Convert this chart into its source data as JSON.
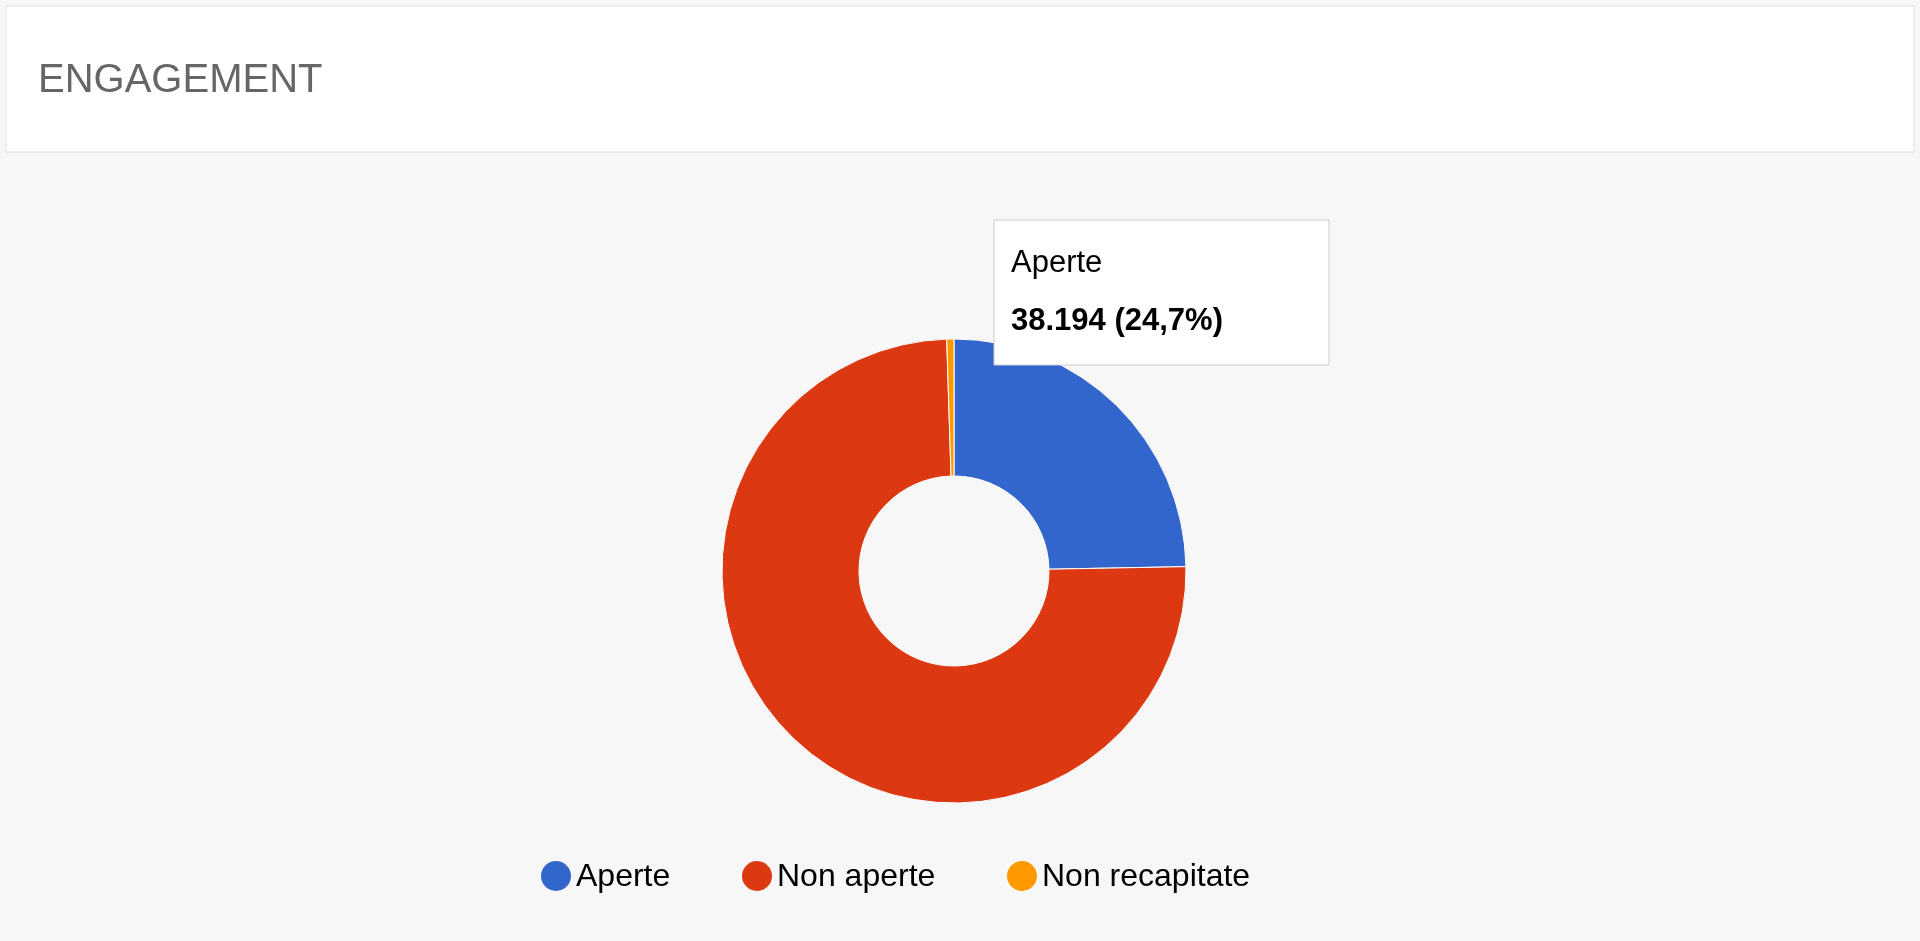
{
  "chart_data": {
    "type": "donut",
    "title": "ENGAGEMENT",
    "categories": [
      "Aperte",
      "Non aperte",
      "Non recapitate"
    ],
    "values": [
      24.7,
      74.8,
      0.5
    ],
    "colors": [
      "#3366cc",
      "#dc3912",
      "#ff9900"
    ],
    "legend": "bottom",
    "annotations": [
      "Aperte",
      "38.194 (24,7%)"
    ]
  }
}
